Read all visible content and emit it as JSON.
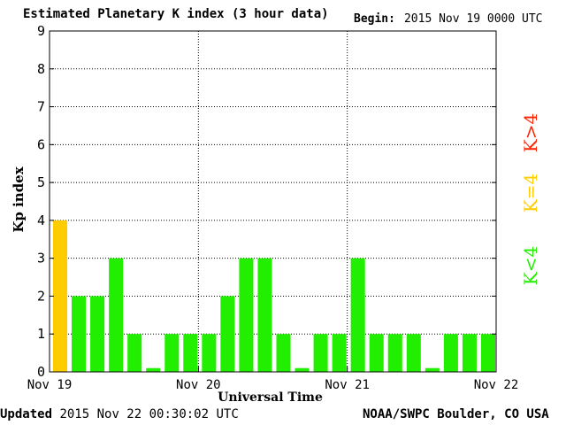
{
  "header": {
    "title": "Estimated Planetary K index (3 hour data)",
    "begin_label": "Begin:",
    "begin_value": "2015 Nov 19 0000 UTC"
  },
  "footer": {
    "updated_label": "Updated",
    "updated_value": "2015 Nov 22 00:30:02 UTC",
    "credit": "NOAA/SWPC Boulder, CO USA"
  },
  "legend": {
    "items": [
      {
        "label": "K<4",
        "color": "#22ee00"
      },
      {
        "label": "K=4",
        "color": "#ffcc00"
      },
      {
        "label": "K>4",
        "color": "#ff2200"
      }
    ]
  },
  "chart_data": {
    "type": "bar",
    "title": "Estimated Planetary K index (3 hour data)",
    "xlabel": "Universal Time",
    "ylabel": "Kp index",
    "ylim": [
      0,
      9
    ],
    "yticks": [
      0,
      1,
      2,
      3,
      4,
      5,
      6,
      7,
      8,
      9
    ],
    "x_tick_labels": [
      "Nov 19",
      "Nov 20",
      "Nov 21",
      "Nov 22"
    ],
    "bins_per_day": 8,
    "grid": true,
    "values": [
      4,
      2,
      2,
      3,
      1,
      0.1,
      1,
      1,
      1,
      2,
      3,
      3,
      1,
      0.1,
      1,
      1,
      3,
      1,
      1,
      1,
      0.1,
      1,
      1,
      1
    ],
    "colors": {
      "low": "#22ee00",
      "equal": "#ffcc00",
      "high": "#ff2200"
    }
  }
}
